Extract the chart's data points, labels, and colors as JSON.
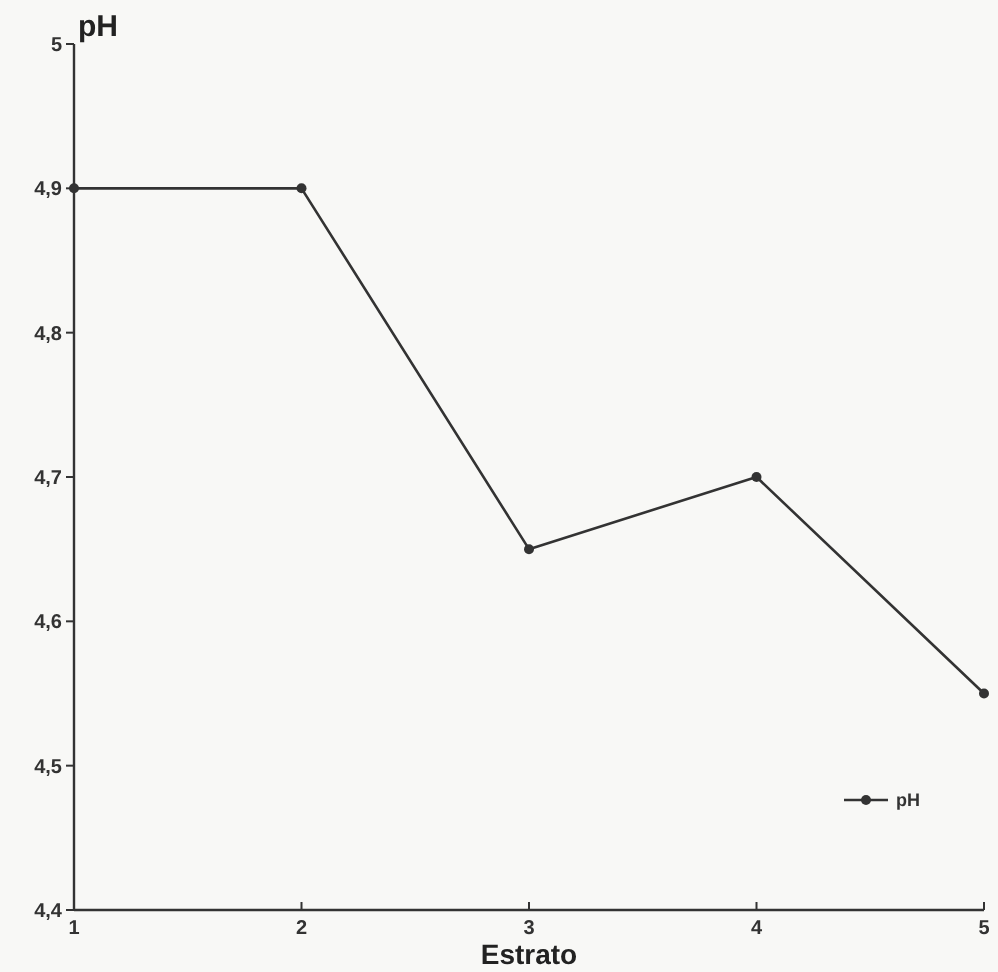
{
  "chart_data": {
    "type": "line",
    "xlabel": "Estrato",
    "ylabel": "pH",
    "x": [
      1,
      2,
      3,
      4,
      5
    ],
    "series": [
      {
        "name": "pH",
        "color": "#333333",
        "values": [
          4.9,
          4.9,
          4.65,
          4.7,
          4.55
        ]
      }
    ],
    "xlim": [
      1,
      5
    ],
    "xticks": [
      1,
      2,
      3,
      4,
      5
    ],
    "ylim": [
      4.4,
      5
    ],
    "yticks": [
      {
        "value": 4.4,
        "label": "4,4"
      },
      {
        "value": 4.5,
        "label": "4,5"
      },
      {
        "value": 4.6,
        "label": "4,6"
      },
      {
        "value": 4.7,
        "label": "4,7"
      },
      {
        "value": 4.8,
        "label": "4,8"
      },
      {
        "value": 4.9,
        "label": "4,9"
      },
      5
    ],
    "grid": false,
    "legend": "bottom right",
    "marker": "circle",
    "line_style": "solid"
  }
}
